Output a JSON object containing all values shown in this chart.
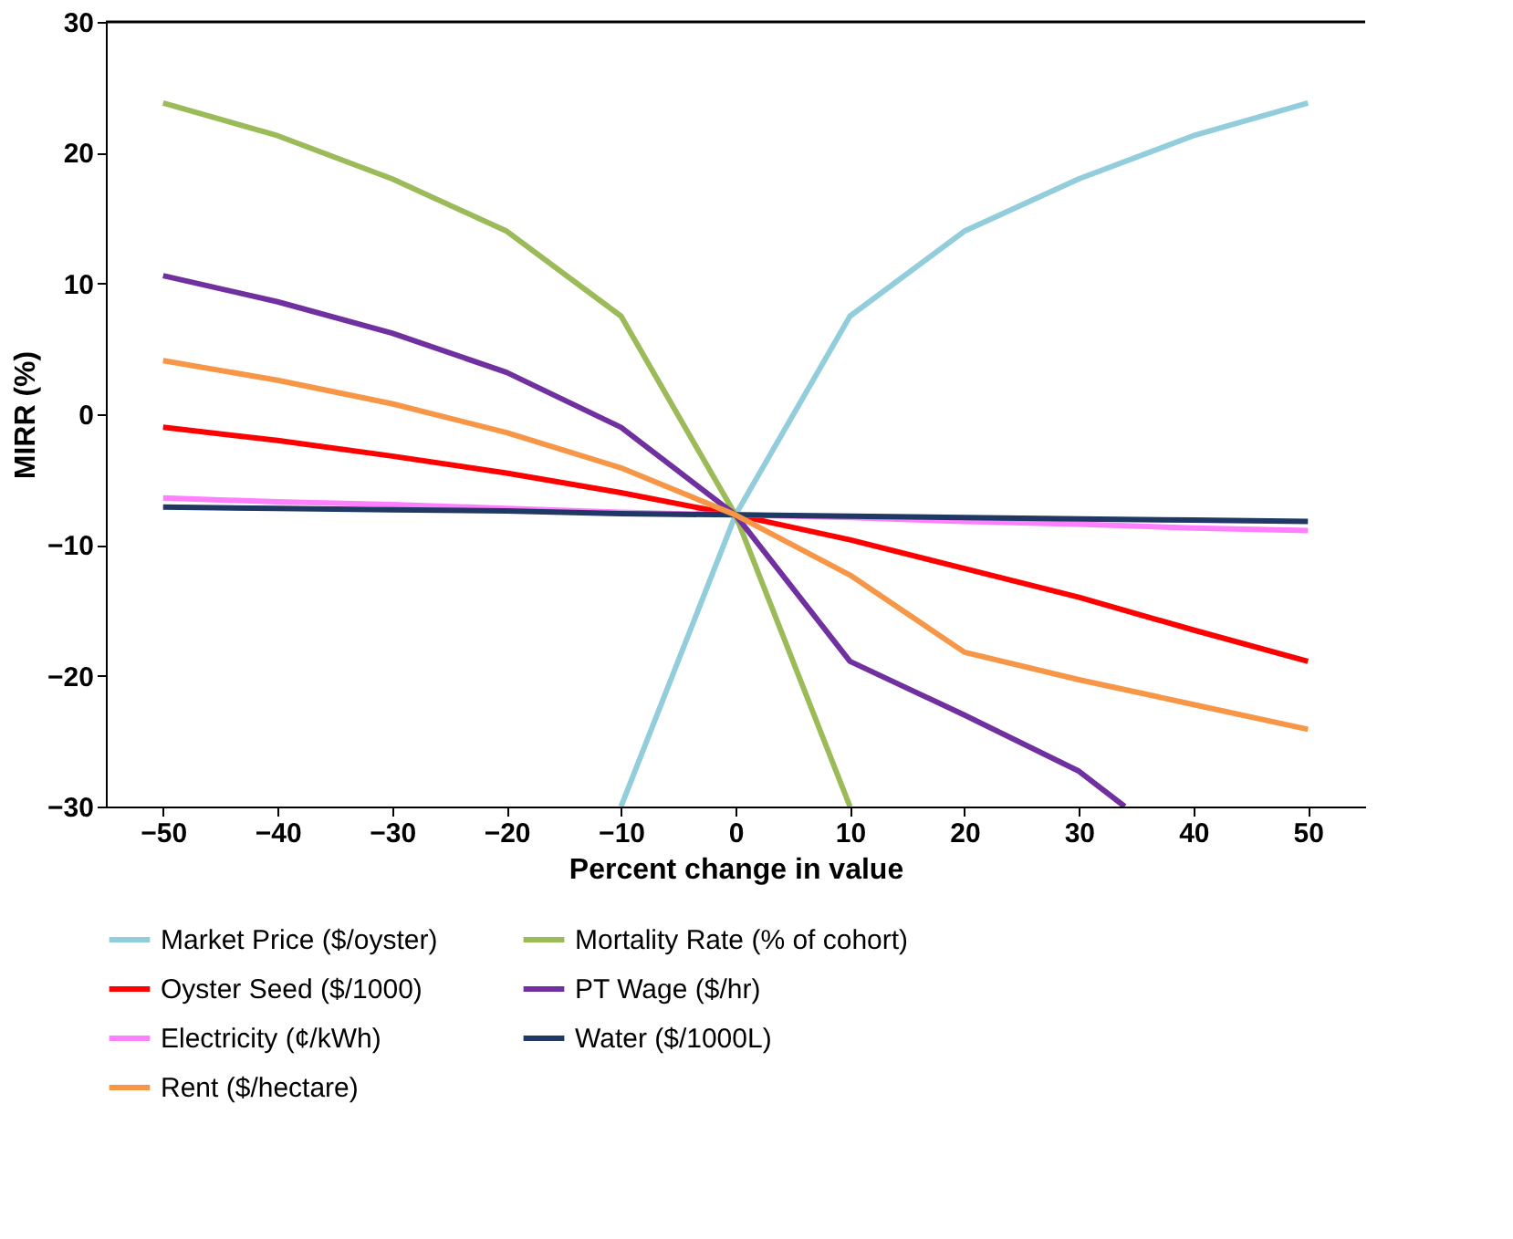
{
  "chart_data": {
    "type": "line",
    "xlabel": "Percent change in value",
    "ylabel": "MIRR (%)",
    "x": [
      -50,
      -40,
      -30,
      -20,
      -10,
      0,
      10,
      20,
      30,
      40,
      50
    ],
    "xlim": [
      -55,
      55
    ],
    "xticks": [
      -50,
      -40,
      -30,
      -20,
      -10,
      0,
      10,
      20,
      30,
      40,
      50
    ],
    "ylim": [
      -30,
      30
    ],
    "yticks": [
      -30,
      -20,
      -10,
      0,
      10,
      20,
      30
    ],
    "grid": false,
    "legend": "bottom",
    "marker": "none",
    "line_style": "solid",
    "ref_lines": [
      {
        "axis": "y",
        "value": 30,
        "color": "#000000"
      }
    ],
    "series": [
      {
        "name": "Market Price ($/oyster)",
        "color": "#92cddc",
        "values": [
          null,
          null,
          null,
          null,
          -30,
          -7.7,
          7.5,
          14,
          18,
          21.3,
          23.8
        ]
      },
      {
        "name": "Mortality Rate (% of cohort)",
        "color": "#9bbb59",
        "values": [
          23.8,
          21.3,
          18,
          14,
          7.5,
          -7.7,
          -30,
          null,
          null,
          null,
          null
        ]
      },
      {
        "name": "Oyster Seed ($/1000)",
        "color": "#ff0000",
        "values": [
          -1,
          -2,
          -3.2,
          -4.5,
          -6,
          -7.7,
          -9.6,
          -11.8,
          -14,
          -16.5,
          -18.9
        ]
      },
      {
        "name": "PT Wage ($/hr)",
        "color": "#7030a0",
        "x": [
          -50,
          -40,
          -30,
          -20,
          -10,
          0,
          10,
          20,
          30,
          34
        ],
        "values": [
          10.6,
          8.6,
          6.2,
          3.2,
          -1,
          -7.7,
          -18.9,
          -23,
          -27.3,
          -30
        ]
      },
      {
        "name": "Electricity (¢/kWh)",
        "color": "#ff80ff",
        "values": [
          -6.4,
          -6.7,
          -6.9,
          -7.2,
          -7.5,
          -7.7,
          -7.9,
          -8.2,
          -8.4,
          -8.7,
          -8.9
        ]
      },
      {
        "name": "Water ($/1000L)",
        "color": "#1f3864",
        "values": [
          -7.1,
          -7.2,
          -7.3,
          -7.4,
          -7.6,
          -7.7,
          -7.8,
          -7.9,
          -8,
          -8.1,
          -8.2
        ]
      },
      {
        "name": "Rent ($/hectare)",
        "color": "#f79646",
        "values": [
          4.1,
          2.6,
          0.8,
          -1.4,
          -4.1,
          -7.7,
          -12.3,
          -18.2,
          -20.3,
          -22.2,
          -24.1
        ]
      }
    ]
  }
}
